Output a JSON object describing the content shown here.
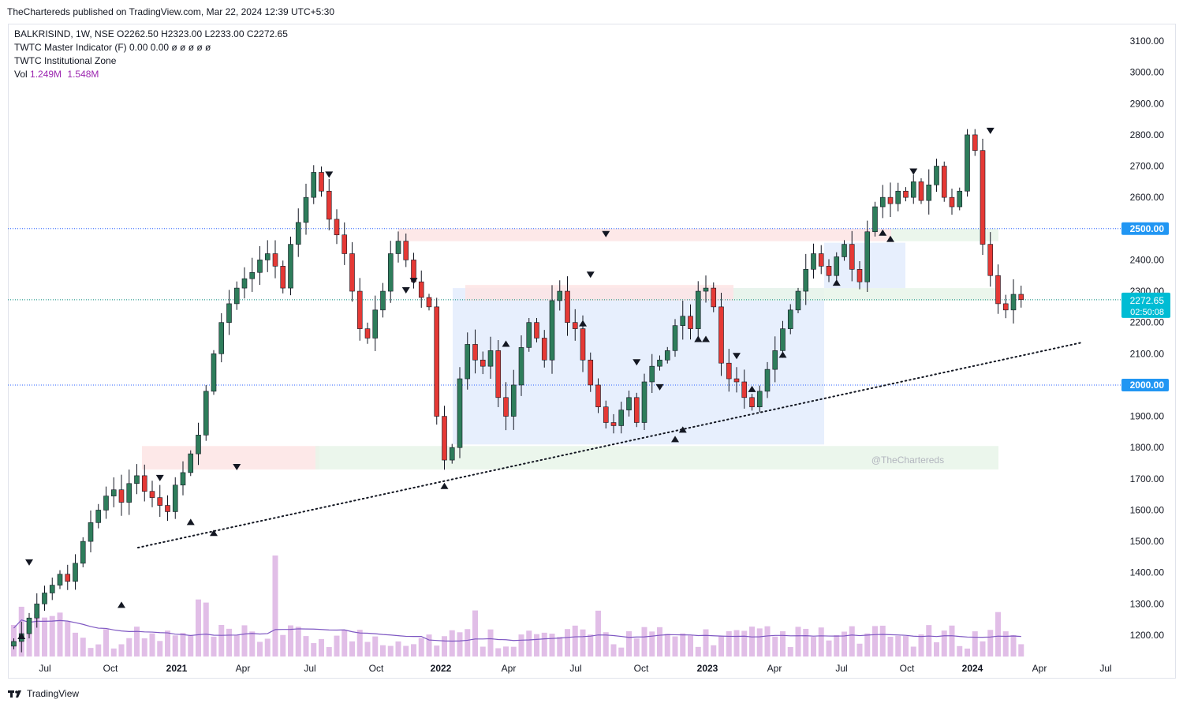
{
  "header": {
    "published": "TheChartereds published on TradingView.com, Mar 22, 2024 12:39 UTC+5:30"
  },
  "legend": {
    "symbol_line": "BALKRISIND, 1W, NSE  O2262.50  H2323.00  L2233.00  C2272.65",
    "indicator1": "TWTC Master Indicator (F)  0.00  0.00  ø  ø  ø  ø  ø",
    "indicator2": "TWTC Institutional Zone",
    "vol_label": "Vol",
    "vol_value": "1.249M",
    "vol_ma": "1.548M"
  },
  "watermark": "@TheChartereds",
  "footer": {
    "brand": "TradingView"
  },
  "colors": {
    "up": "#26a69a",
    "up_body": "#2e7d5b",
    "down": "#e53935",
    "volume": "#e1bee7",
    "vol_ma": "#7e57c2",
    "price_tag": "#2196f3",
    "last_price": "#00bcd4"
  },
  "chart_data": {
    "type": "candlestick",
    "symbol": "BALKRISIND",
    "interval": "1W",
    "exchange": "NSE",
    "ohlc_last": {
      "open": 2262.5,
      "high": 2323.0,
      "low": 2233.0,
      "close": 2272.65
    },
    "y_ticks": [
      "3100.00",
      "3000.00",
      "2900.00",
      "2800.00",
      "2700.00",
      "2600.00",
      "2500.00",
      "2400.00",
      "2300.00",
      "2200.00",
      "2100.00",
      "2000.00",
      "1900.00",
      "1800.00",
      "1700.00",
      "1600.00",
      "1500.00",
      "1400.00",
      "1300.00",
      "1200.00"
    ],
    "y_tick_values": [
      3100,
      3000,
      2900,
      2800,
      2700,
      2600,
      2500,
      2400,
      2300,
      2200,
      2100,
      2000,
      1900,
      1800,
      1700,
      1600,
      1500,
      1400,
      1300,
      1200
    ],
    "ylim": [
      1140,
      3160
    ],
    "x_ticks": [
      "Jul",
      "Oct",
      "2021",
      "Apr",
      "Jul",
      "Oct",
      "2022",
      "Apr",
      "Jul",
      "Oct",
      "2023",
      "Apr",
      "Jul",
      "Oct",
      "2024",
      "Apr",
      "Jul"
    ],
    "x_tick_bold": [
      false,
      false,
      true,
      false,
      false,
      false,
      true,
      false,
      false,
      false,
      true,
      false,
      false,
      false,
      true,
      false,
      false
    ],
    "horizontal_levels": [
      {
        "label": "2500.00",
        "value": 2500
      },
      {
        "label": "2000.00",
        "value": 2000
      }
    ],
    "last_price_tag": {
      "price": "2272.65",
      "countdown": "02:50:08",
      "value": 2272.65
    },
    "weekly_closes": [
      1180,
      1205,
      1255,
      1300,
      1335,
      1360,
      1395,
      1372,
      1430,
      1500,
      1560,
      1600,
      1645,
      1665,
      1625,
      1685,
      1710,
      1660,
      1640,
      1615,
      1595,
      1680,
      1720,
      1780,
      1840,
      1980,
      2100,
      2200,
      2260,
      2310,
      2340,
      2360,
      2400,
      2420,
      2380,
      2310,
      2450,
      2520,
      2600,
      2680,
      2620,
      2530,
      2480,
      2420,
      2300,
      2180,
      2150,
      2240,
      2300,
      2420,
      2460,
      2400,
      2330,
      2280,
      2250,
      1900,
      1760,
      1800,
      2020,
      2130,
      2080,
      2060,
      2110,
      1960,
      1900,
      2000,
      2120,
      2200,
      2150,
      2080,
      2270,
      2300,
      2200,
      2180,
      2080,
      2000,
      1930,
      1880,
      1870,
      1920,
      1960,
      1880,
      2010,
      2060,
      2080,
      2110,
      2190,
      2220,
      2180,
      2300,
      2310,
      2250,
      2070,
      2020,
      2010,
      1960,
      1930,
      1980,
      2050,
      2110,
      2180,
      2240,
      2300,
      2370,
      2420,
      2380,
      2350,
      2410,
      2450,
      2370,
      2330,
      2490,
      2570,
      2600,
      2580,
      2620,
      2600,
      2650,
      2590,
      2640,
      2700,
      2600,
      2570,
      2620,
      2800,
      2750,
      2450,
      2350,
      2260,
      2240,
      2290,
      2273
    ],
    "annotations_down": [
      {
        "week": 2,
        "value": 1430
      },
      {
        "week": 19,
        "value": 1700
      },
      {
        "week": 29,
        "value": 1735
      },
      {
        "week": 41,
        "value": 2670
      },
      {
        "week": 51,
        "value": 2300
      },
      {
        "week": 52,
        "value": 2330
      },
      {
        "week": 75,
        "value": 2350
      },
      {
        "week": 77,
        "value": 2480
      },
      {
        "week": 81,
        "value": 2070
      },
      {
        "week": 84,
        "value": 1990
      },
      {
        "week": 94,
        "value": 2090
      },
      {
        "week": 117,
        "value": 2680
      },
      {
        "week": 127,
        "value": 2810
      }
    ],
    "annotations_up": [
      {
        "week": 1,
        "value": 1200
      },
      {
        "week": 14,
        "value": 1300
      },
      {
        "week": 23,
        "value": 1565
      },
      {
        "week": 26,
        "value": 1530
      },
      {
        "week": 56,
        "value": 1680
      },
      {
        "week": 64,
        "value": 2135
      },
      {
        "week": 74,
        "value": 2200
      },
      {
        "week": 86,
        "value": 1830
      },
      {
        "week": 87,
        "value": 1860
      },
      {
        "week": 89,
        "value": 2150
      },
      {
        "week": 90,
        "value": 2150
      },
      {
        "week": 96,
        "value": 1990
      },
      {
        "week": 100,
        "value": 2100
      },
      {
        "week": 107,
        "value": 2330
      },
      {
        "week": 113,
        "value": 2490
      },
      {
        "week": 114,
        "value": 2470
      }
    ]
  }
}
